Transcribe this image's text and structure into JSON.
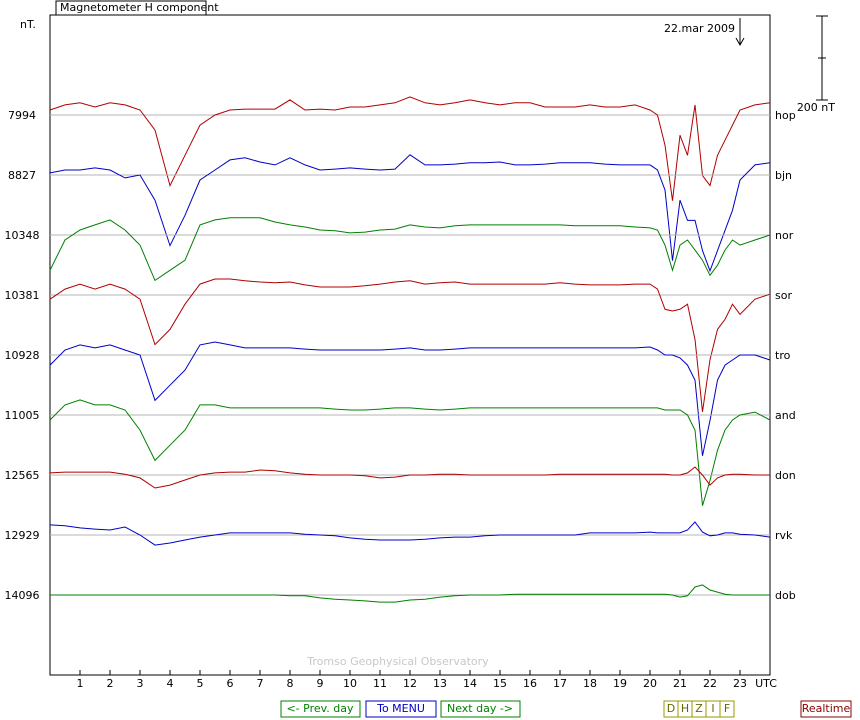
{
  "chart_data": {
    "type": "line",
    "title": "Magnetometer H component",
    "y_label": "nT.",
    "x_label": "UTC",
    "annotation": "22.mar 2009",
    "watermark": "Tromso Geophysical Observatory",
    "scale_bar": {
      "value": 200,
      "label": "200 nT"
    },
    "x": [
      0,
      0.5,
      1,
      1.5,
      2,
      2.5,
      3,
      3.5,
      4,
      4.5,
      5,
      5.5,
      6,
      6.5,
      7,
      7.5,
      8,
      8.5,
      9,
      9.5,
      10,
      10.5,
      11,
      11.5,
      12,
      12.5,
      13,
      13.5,
      14,
      14.5,
      15,
      15.5,
      16,
      16.5,
      17,
      17.5,
      18,
      18.5,
      19,
      19.5,
      20,
      20.25,
      20.5,
      20.75,
      21,
      21.25,
      21.5,
      21.75,
      22,
      22.25,
      22.5,
      22.75,
      23,
      23.5,
      24
    ],
    "xlim": [
      0,
      24
    ],
    "xticks": [
      1,
      2,
      3,
      4,
      5,
      6,
      7,
      8,
      9,
      10,
      11,
      12,
      13,
      14,
      15,
      16,
      17,
      18,
      19,
      20,
      21,
      22,
      23
    ],
    "series": [
      {
        "name": "hop",
        "level": 7994,
        "color": "#b00000",
        "values": [
          12,
          24,
          29,
          19,
          29,
          24,
          12,
          -36,
          -168,
          -96,
          -24,
          0,
          12,
          14,
          14,
          14,
          36,
          12,
          14,
          12,
          19,
          19,
          24,
          29,
          43,
          29,
          24,
          29,
          36,
          29,
          24,
          29,
          29,
          19,
          19,
          19,
          24,
          19,
          19,
          24,
          12,
          0,
          -72,
          -204,
          -48,
          -96,
          24,
          -144,
          -168,
          -96,
          -60,
          -24,
          12,
          24,
          29
        ]
      },
      {
        "name": "bjn",
        "level": 8827,
        "color": "#0000c8",
        "values": [
          5,
          12,
          12,
          17,
          12,
          -7,
          0,
          -60,
          -168,
          -96,
          -12,
          12,
          36,
          41,
          31,
          24,
          41,
          24,
          12,
          14,
          17,
          14,
          12,
          14,
          48,
          24,
          24,
          26,
          29,
          29,
          31,
          24,
          24,
          26,
          29,
          29,
          29,
          26,
          24,
          24,
          24,
          12,
          -36,
          -204,
          -60,
          -108,
          -108,
          -180,
          -228,
          -180,
          -132,
          -84,
          -12,
          24,
          29
        ]
      },
      {
        "name": "nor",
        "level": 10348,
        "color": "#008000",
        "values": [
          -84,
          -12,
          12,
          24,
          36,
          12,
          -24,
          -108,
          -84,
          -60,
          24,
          36,
          41,
          41,
          41,
          31,
          24,
          19,
          12,
          10,
          5,
          7,
          12,
          14,
          24,
          19,
          17,
          22,
          24,
          24,
          24,
          24,
          24,
          24,
          24,
          22,
          22,
          22,
          22,
          19,
          17,
          12,
          -24,
          -84,
          -24,
          -12,
          -36,
          -60,
          -96,
          -72,
          -36,
          -12,
          -24,
          -12,
          0
        ]
      },
      {
        "name": "sor",
        "level": 10381,
        "color": "#b00000",
        "values": [
          -10,
          14,
          26,
          14,
          26,
          14,
          -10,
          -118,
          -82,
          -22,
          26,
          38,
          38,
          34,
          31,
          29,
          31,
          24,
          19,
          19,
          19,
          22,
          26,
          31,
          34,
          26,
          29,
          31,
          26,
          26,
          26,
          26,
          26,
          26,
          29,
          26,
          24,
          24,
          24,
          26,
          26,
          14,
          -34,
          -38,
          -34,
          -22,
          -106,
          -278,
          -154,
          -82,
          -58,
          -22,
          -46,
          -10,
          2
        ]
      },
      {
        "name": "tro",
        "level": 10928,
        "color": "#0000c8",
        "values": [
          -24,
          12,
          24,
          17,
          24,
          12,
          0,
          -108,
          -72,
          -36,
          24,
          31,
          24,
          17,
          17,
          17,
          17,
          14,
          12,
          12,
          12,
          12,
          12,
          14,
          17,
          12,
          12,
          14,
          17,
          17,
          17,
          17,
          17,
          17,
          17,
          17,
          17,
          17,
          17,
          17,
          19,
          12,
          0,
          0,
          -7,
          -24,
          -60,
          -240,
          -156,
          -60,
          -24,
          -12,
          0,
          0,
          -12
        ]
      },
      {
        "name": "and",
        "level": 11005,
        "color": "#008000",
        "values": [
          -12,
          24,
          36,
          24,
          24,
          12,
          -36,
          -108,
          -72,
          -36,
          24,
          24,
          17,
          17,
          17,
          17,
          17,
          17,
          17,
          14,
          12,
          12,
          14,
          17,
          17,
          14,
          12,
          14,
          17,
          17,
          17,
          17,
          17,
          17,
          17,
          17,
          17,
          17,
          17,
          17,
          17,
          17,
          12,
          12,
          12,
          0,
          -36,
          -216,
          -156,
          -84,
          -36,
          -12,
          0,
          7,
          -12
        ]
      },
      {
        "name": "don",
        "level": 12565,
        "color": "#b00000",
        "values": [
          5,
          7,
          7,
          7,
          7,
          2,
          -7,
          -31,
          -24,
          -12,
          0,
          5,
          7,
          7,
          12,
          10,
          5,
          2,
          0,
          0,
          0,
          -2,
          -7,
          -5,
          0,
          0,
          2,
          2,
          0,
          0,
          0,
          0,
          0,
          0,
          2,
          2,
          2,
          2,
          2,
          2,
          2,
          2,
          2,
          0,
          0,
          5,
          19,
          0,
          -24,
          -7,
          0,
          2,
          2,
          0,
          0
        ]
      },
      {
        "name": "rvk",
        "level": 12929,
        "color": "#0000c8",
        "values": [
          24,
          22,
          17,
          14,
          12,
          19,
          0,
          -24,
          -19,
          -12,
          -5,
          0,
          5,
          5,
          5,
          5,
          5,
          2,
          0,
          -2,
          -7,
          -10,
          -12,
          -12,
          -12,
          -10,
          -7,
          -5,
          -5,
          -2,
          0,
          0,
          0,
          0,
          0,
          0,
          5,
          5,
          5,
          5,
          7,
          5,
          5,
          5,
          5,
          12,
          31,
          7,
          -2,
          0,
          5,
          5,
          2,
          0,
          -5
        ]
      },
      {
        "name": "dob",
        "level": 14096,
        "color": "#008000",
        "values": [
          0,
          0,
          0,
          0,
          0,
          0,
          0,
          0,
          0,
          0,
          0,
          0,
          0,
          0,
          0,
          0,
          -2,
          -2,
          -7,
          -10,
          -12,
          -14,
          -17,
          -17,
          -12,
          -10,
          -5,
          -2,
          0,
          0,
          0,
          2,
          2,
          2,
          2,
          2,
          2,
          2,
          2,
          2,
          2,
          2,
          2,
          0,
          -5,
          -2,
          19,
          24,
          12,
          7,
          2,
          0,
          0,
          0,
          0
        ]
      }
    ]
  },
  "buttons": {
    "prev": "<- Prev. day",
    "menu": "To MENU",
    "next": "Next day ->",
    "components": [
      "D",
      "H",
      "Z",
      "I",
      "F"
    ],
    "realtime": "Realtime"
  }
}
